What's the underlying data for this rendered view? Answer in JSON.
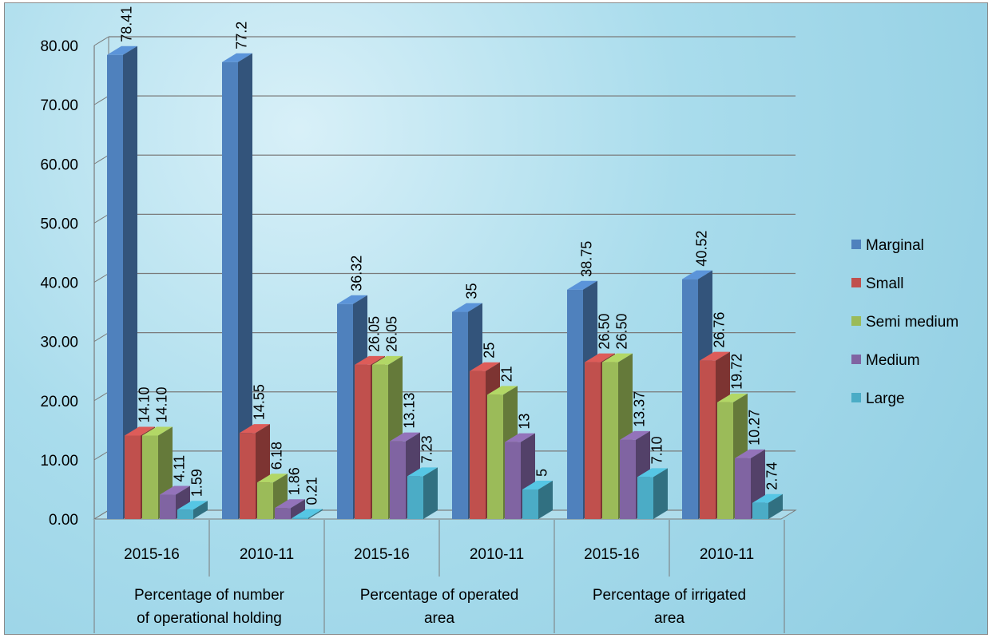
{
  "chart_data": {
    "type": "bar",
    "title": "",
    "xlabel": "",
    "ylabel": "",
    "ylim": [
      0,
      80
    ],
    "yticks": [
      "0.00",
      "10.00",
      "20.00",
      "30.00",
      "40.00",
      "50.00",
      "60.00",
      "70.00",
      "80.00"
    ],
    "grid": true,
    "legend_position": "right",
    "groups": [
      {
        "label": "Percentage of number of operational holding",
        "categories": [
          "2015-16",
          "2010-11"
        ]
      },
      {
        "label": "Percentage of operated area",
        "categories": [
          "2015-16",
          "2010-11"
        ]
      },
      {
        "label": "Percentage of irrigated area",
        "categories": [
          "2015-16",
          "2010-11"
        ]
      }
    ],
    "categories": [
      "2015-16",
      "2010-11",
      "2015-16",
      "2010-11",
      "2015-16",
      "2010-11"
    ],
    "series": [
      {
        "name": "Marginal",
        "color": "#4f81bd",
        "values": [
          78.41,
          77.2,
          36.32,
          35,
          38.75,
          40.52
        ],
        "labels": [
          "78.41",
          "77.2",
          "36.32",
          "35",
          "38.75",
          "40.52"
        ]
      },
      {
        "name": "Small",
        "color": "#c0504d",
        "values": [
          14.1,
          14.55,
          26.05,
          25,
          26.5,
          26.76
        ],
        "labels": [
          "14.10",
          "14.55",
          "26.05",
          "25",
          "26.50",
          "26.76"
        ]
      },
      {
        "name": "Semi medium",
        "color": "#9bbb59",
        "values": [
          14.1,
          6.18,
          26.05,
          21,
          26.5,
          19.72
        ],
        "labels": [
          "14.10",
          "6.18",
          "26.05",
          "21",
          "26.50",
          "19.72"
        ]
      },
      {
        "name": "Medium",
        "color": "#8064a2",
        "values": [
          4.11,
          1.86,
          13.13,
          13,
          13.37,
          10.27
        ],
        "labels": [
          "4.11",
          "1.86",
          "13.13",
          "13",
          "13.37",
          "10.27"
        ]
      },
      {
        "name": "Large",
        "color": "#4bacc6",
        "values": [
          1.59,
          0.21,
          7.23,
          5,
          7.1,
          2.74
        ],
        "labels": [
          "1.59",
          "0.21",
          "7.23",
          "5",
          "7.10",
          "2.74"
        ]
      }
    ]
  }
}
